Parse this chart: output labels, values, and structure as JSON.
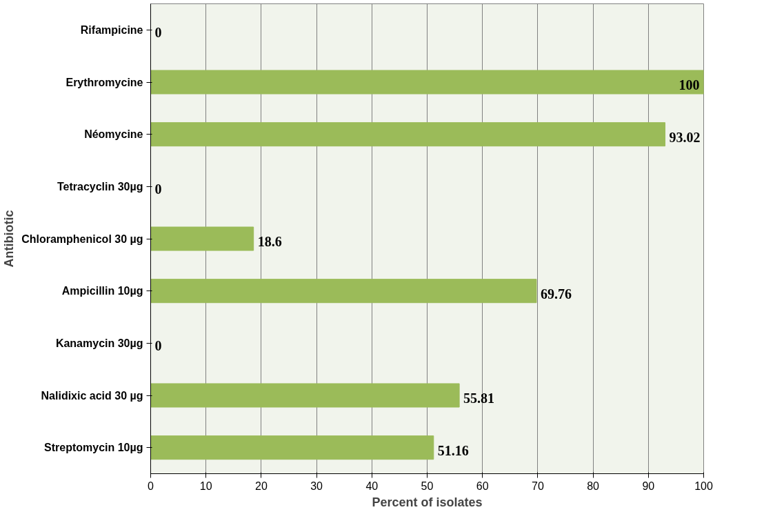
{
  "chart_data": {
    "type": "bar",
    "orientation": "horizontal",
    "xlabel": "Percent of isolates",
    "ylabel": "Antibiotic",
    "categories": [
      "Rifampicine",
      "Erythromycine",
      "Néomycine",
      "Tetracyclin 30µg",
      "Chloramphenicol 30 µg",
      "Ampicillin 10µg",
      "Kanamycin 30µg",
      "Nalidixic acid 30 µg",
      "Streptomycin 10µg"
    ],
    "values": [
      0,
      100,
      93.02,
      0,
      18.6,
      69.76,
      0,
      55.81,
      51.16
    ],
    "color": "#9bbb59",
    "xlim": [
      0,
      100
    ],
    "xticks": [
      0,
      10,
      20,
      30,
      40,
      50,
      60,
      70,
      80,
      90,
      100
    ],
    "grid": "x",
    "data_labels": true
  }
}
